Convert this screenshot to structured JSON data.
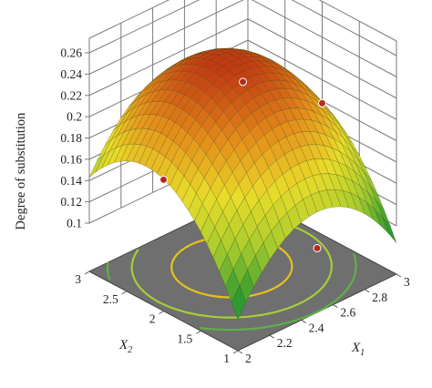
{
  "chart_data": {
    "type": "surface3d",
    "zlabel": "Degree of substitution",
    "x1label": {
      "main": "X",
      "sub": "1"
    },
    "x2label": {
      "main": "X",
      "sub": "2"
    },
    "x1lim": [
      2,
      3
    ],
    "x2lim": [
      1,
      3
    ],
    "zlim": [
      0.1,
      0.26
    ],
    "x1ticks": [
      "2",
      "2.2",
      "2.4",
      "2.6",
      "2.8",
      "3"
    ],
    "x2ticks": [
      "1",
      "1.5",
      "2",
      "2.5",
      "3"
    ],
    "zticks": [
      "0.1",
      "0.12",
      "0.14",
      "0.16",
      "0.18",
      "0.2",
      "0.22",
      "0.24",
      "0.26"
    ],
    "grid": true,
    "contour_floor": true,
    "colormap": [
      "#2f9a2f",
      "#a8cc2e",
      "#e9dc2a",
      "#e58e1b",
      "#c23a12"
    ],
    "floor_color": "#6f6f6f",
    "contour_colors": [
      "#e6c21c",
      "#a6cc3a",
      "#5fb045"
    ],
    "design_points": [
      {
        "x1": 2.5,
        "x2": 2.0,
        "z": 0.234
      },
      {
        "x1": 2.0,
        "x2": 2.0,
        "z": 0.178
      },
      {
        "x1": 3.0,
        "x2": 2.0,
        "z": 0.178
      },
      {
        "x1": 2.5,
        "x2": 1.0,
        "z": 0.115
      }
    ],
    "point_color": "#b52a23"
  }
}
